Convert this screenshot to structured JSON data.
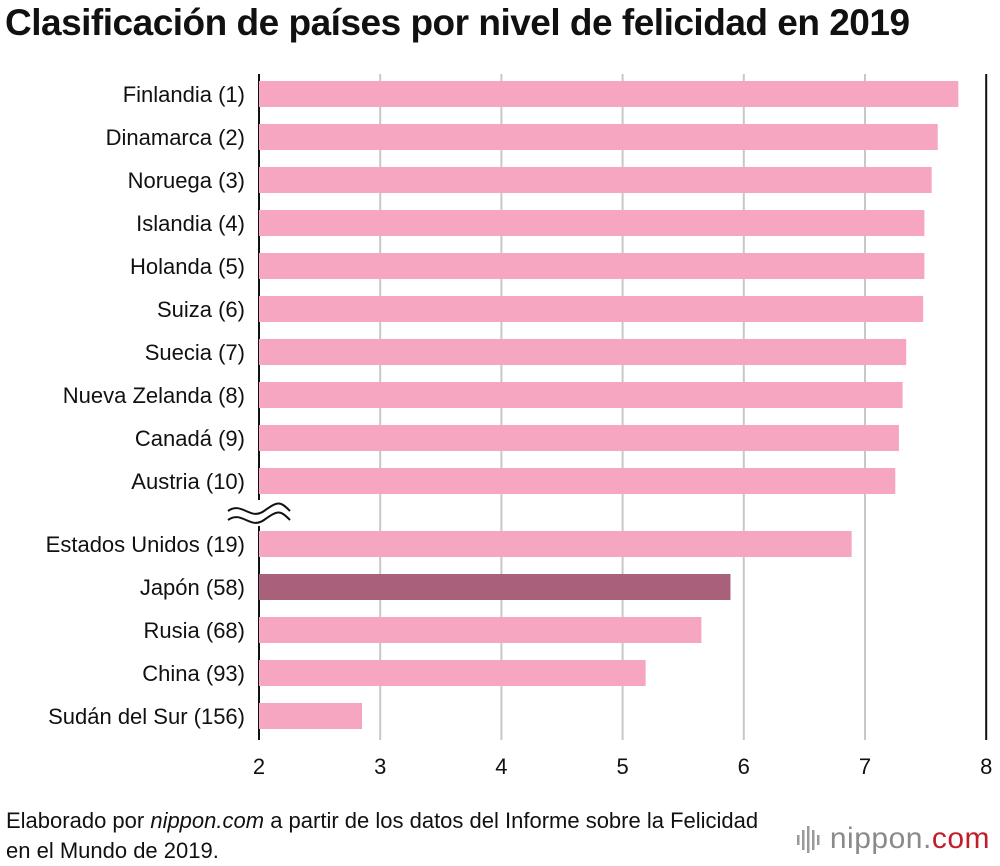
{
  "chart_data": {
    "type": "bar",
    "orientation": "horizontal",
    "title": "Clasificación de países por nivel de felicidad en 2019",
    "categories": [
      "Finlandia (1)",
      "Dinamarca (2)",
      "Noruega (3)",
      "Islandia (4)",
      "Holanda (5)",
      "Suiza (6)",
      "Suecia (7)",
      "Nueva Zelanda (8)",
      "Canadá (9)",
      "Austria (10)",
      "Estados Unidos (19)",
      "Japón (58)",
      "Rusia (68)",
      "China (93)",
      "Sudán del Sur (156)"
    ],
    "values": [
      7.77,
      7.6,
      7.55,
      7.49,
      7.49,
      7.48,
      7.34,
      7.31,
      7.28,
      7.25,
      6.89,
      5.89,
      5.65,
      5.19,
      2.85
    ],
    "highlight": "Japón (58)",
    "axis_break_after": "Austria (10)",
    "xlim": [
      2,
      8
    ],
    "xticks": [
      2,
      3,
      4,
      5,
      6,
      7,
      8
    ],
    "grid": true,
    "bar_color": "#f6a6c1",
    "highlight_color": "#a9617b",
    "xlabel": "",
    "ylabel": ""
  },
  "footer": {
    "prefix": "Elaborado por ",
    "source": "nippon.com",
    "suffix": " a partir de los datos del Informe sobre la Felicidad en el Mundo de 2019."
  },
  "brand": {
    "icon": "waveform-logo-icon",
    "name": "nippon.",
    "tld": "com"
  }
}
